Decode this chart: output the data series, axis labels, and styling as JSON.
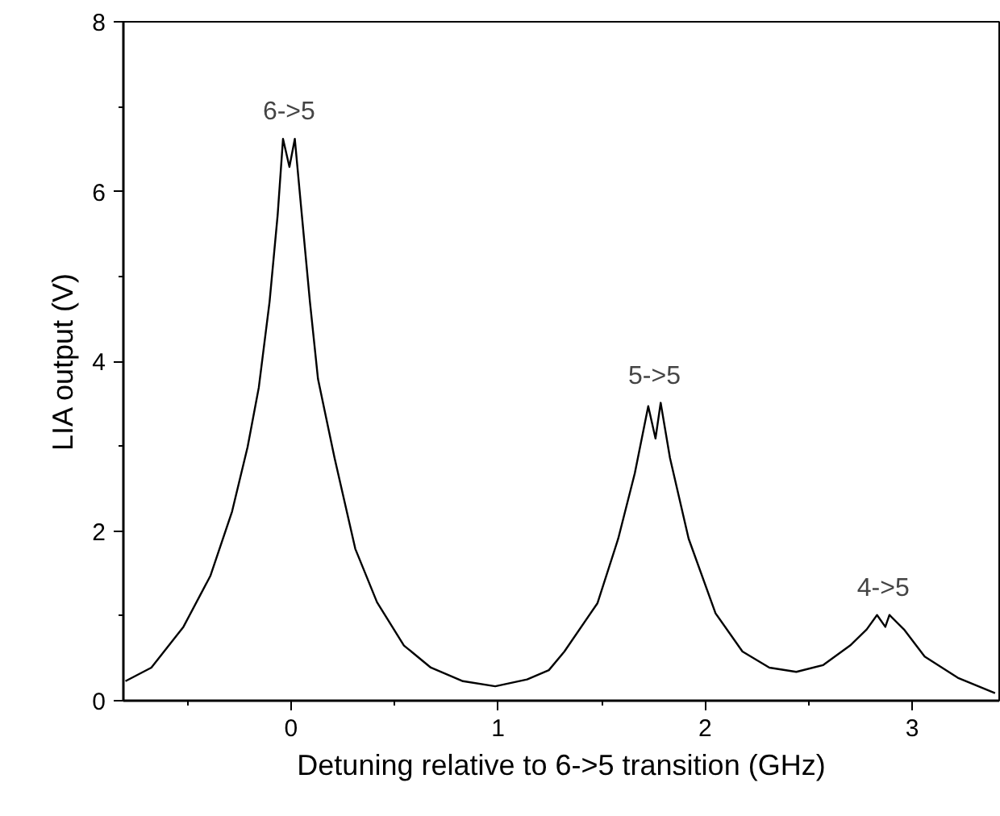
{
  "chart_data": {
    "type": "line",
    "xlabel": "Detuning relative to 6->5 transition (GHz)",
    "ylabel": "LIA output (V)",
    "xlim": [
      -0.81,
      3.42
    ],
    "ylim": [
      0,
      8
    ],
    "xticks": [
      0,
      1,
      2,
      3
    ],
    "yticks": [
      0,
      2,
      4,
      6,
      8
    ],
    "marker": "none",
    "line_style": "solid",
    "series": [
      {
        "color": "#000000",
        "x": [
          -0.8,
          -0.675,
          -0.52,
          -0.39,
          -0.285,
          -0.21,
          -0.156,
          -0.104,
          -0.065,
          -0.039,
          -0.008,
          0.018,
          0.052,
          0.091,
          0.13,
          0.21,
          0.31,
          0.415,
          0.545,
          0.675,
          0.83,
          0.986,
          1.14,
          1.245,
          1.32,
          1.48,
          1.58,
          1.66,
          1.725,
          1.76,
          1.785,
          1.83,
          1.92,
          2.05,
          2.18,
          2.31,
          2.44,
          2.57,
          2.7,
          2.78,
          2.83,
          2.87,
          2.89,
          2.96,
          3.06,
          3.22,
          3.4
        ],
        "values": [
          0.23,
          0.39,
          0.87,
          1.47,
          2.23,
          2.99,
          3.69,
          4.7,
          5.72,
          6.62,
          6.29,
          6.62,
          5.72,
          4.7,
          3.79,
          2.86,
          1.79,
          1.16,
          0.65,
          0.39,
          0.23,
          0.17,
          0.25,
          0.36,
          0.58,
          1.15,
          1.91,
          2.68,
          3.47,
          3.09,
          3.51,
          2.86,
          1.91,
          1.03,
          0.58,
          0.39,
          0.34,
          0.42,
          0.65,
          0.84,
          1.01,
          0.87,
          1.01,
          0.84,
          0.52,
          0.27,
          0.09
        ]
      }
    ],
    "annotations": [
      {
        "text": "6->5",
        "x": -0.01,
        "y": 6.62
      },
      {
        "text": "5->5",
        "x": 1.755,
        "y": 3.51
      },
      {
        "text": "4->5",
        "x": 2.86,
        "y": 1.01
      }
    ]
  }
}
